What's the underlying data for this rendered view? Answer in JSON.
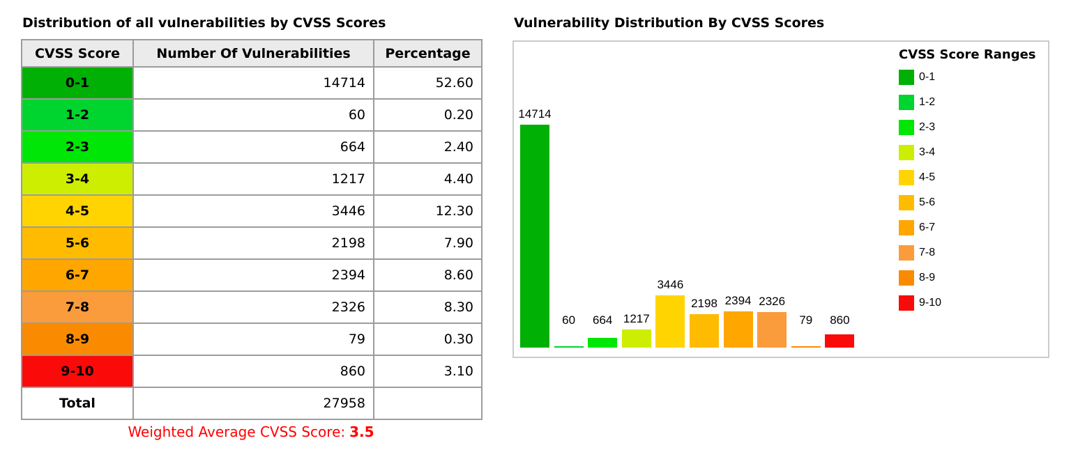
{
  "table": {
    "title": "Distribution of all vulnerabilities by CVSS Scores",
    "columns": [
      "CVSS Score",
      "Number Of Vulnerabilities",
      "Percentage"
    ],
    "rows": [
      {
        "range": "0-1",
        "count": "14714",
        "pct": "52.60"
      },
      {
        "range": "1-2",
        "count": "60",
        "pct": "0.20"
      },
      {
        "range": "2-3",
        "count": "664",
        "pct": "2.40"
      },
      {
        "range": "3-4",
        "count": "1217",
        "pct": "4.40"
      },
      {
        "range": "4-5",
        "count": "3446",
        "pct": "12.30"
      },
      {
        "range": "5-6",
        "count": "2198",
        "pct": "7.90"
      },
      {
        "range": "6-7",
        "count": "2394",
        "pct": "8.60"
      },
      {
        "range": "7-8",
        "count": "2326",
        "pct": "8.30"
      },
      {
        "range": "8-9",
        "count": "79",
        "pct": "0.30"
      },
      {
        "range": "9-10",
        "count": "860",
        "pct": "3.10"
      }
    ],
    "total": {
      "label": "Total",
      "count": "27958",
      "pct": ""
    },
    "footer": {
      "label": "Weighted Average CVSS Score:",
      "value": "3.5",
      "color": "#ff0000"
    }
  },
  "chart": {
    "title": "Vulnerability Distribution By CVSS Scores",
    "legend_title": "CVSS Score Ranges"
  },
  "chart_data": {
    "type": "bar",
    "title": "Vulnerability Distribution By CVSS Scores",
    "categories": [
      "0-1",
      "1-2",
      "2-3",
      "3-4",
      "4-5",
      "5-6",
      "6-7",
      "7-8",
      "8-9",
      "9-10"
    ],
    "values": [
      14714,
      60,
      664,
      1217,
      3446,
      2198,
      2394,
      2326,
      79,
      860
    ],
    "bar_colors": [
      "#00b005",
      "#00d42e",
      "#00e606",
      "#cdee00",
      "#ffd400",
      "#ffbb00",
      "#ffa600",
      "#fa9c3c",
      "#fa8b00",
      "#fb0a0a"
    ],
    "data_labels": true,
    "legend_title": "CVSS Score Ranges",
    "legend_position": "right",
    "xlabel": "",
    "ylabel": "",
    "ylim": [
      0,
      14714
    ],
    "grid": false
  }
}
